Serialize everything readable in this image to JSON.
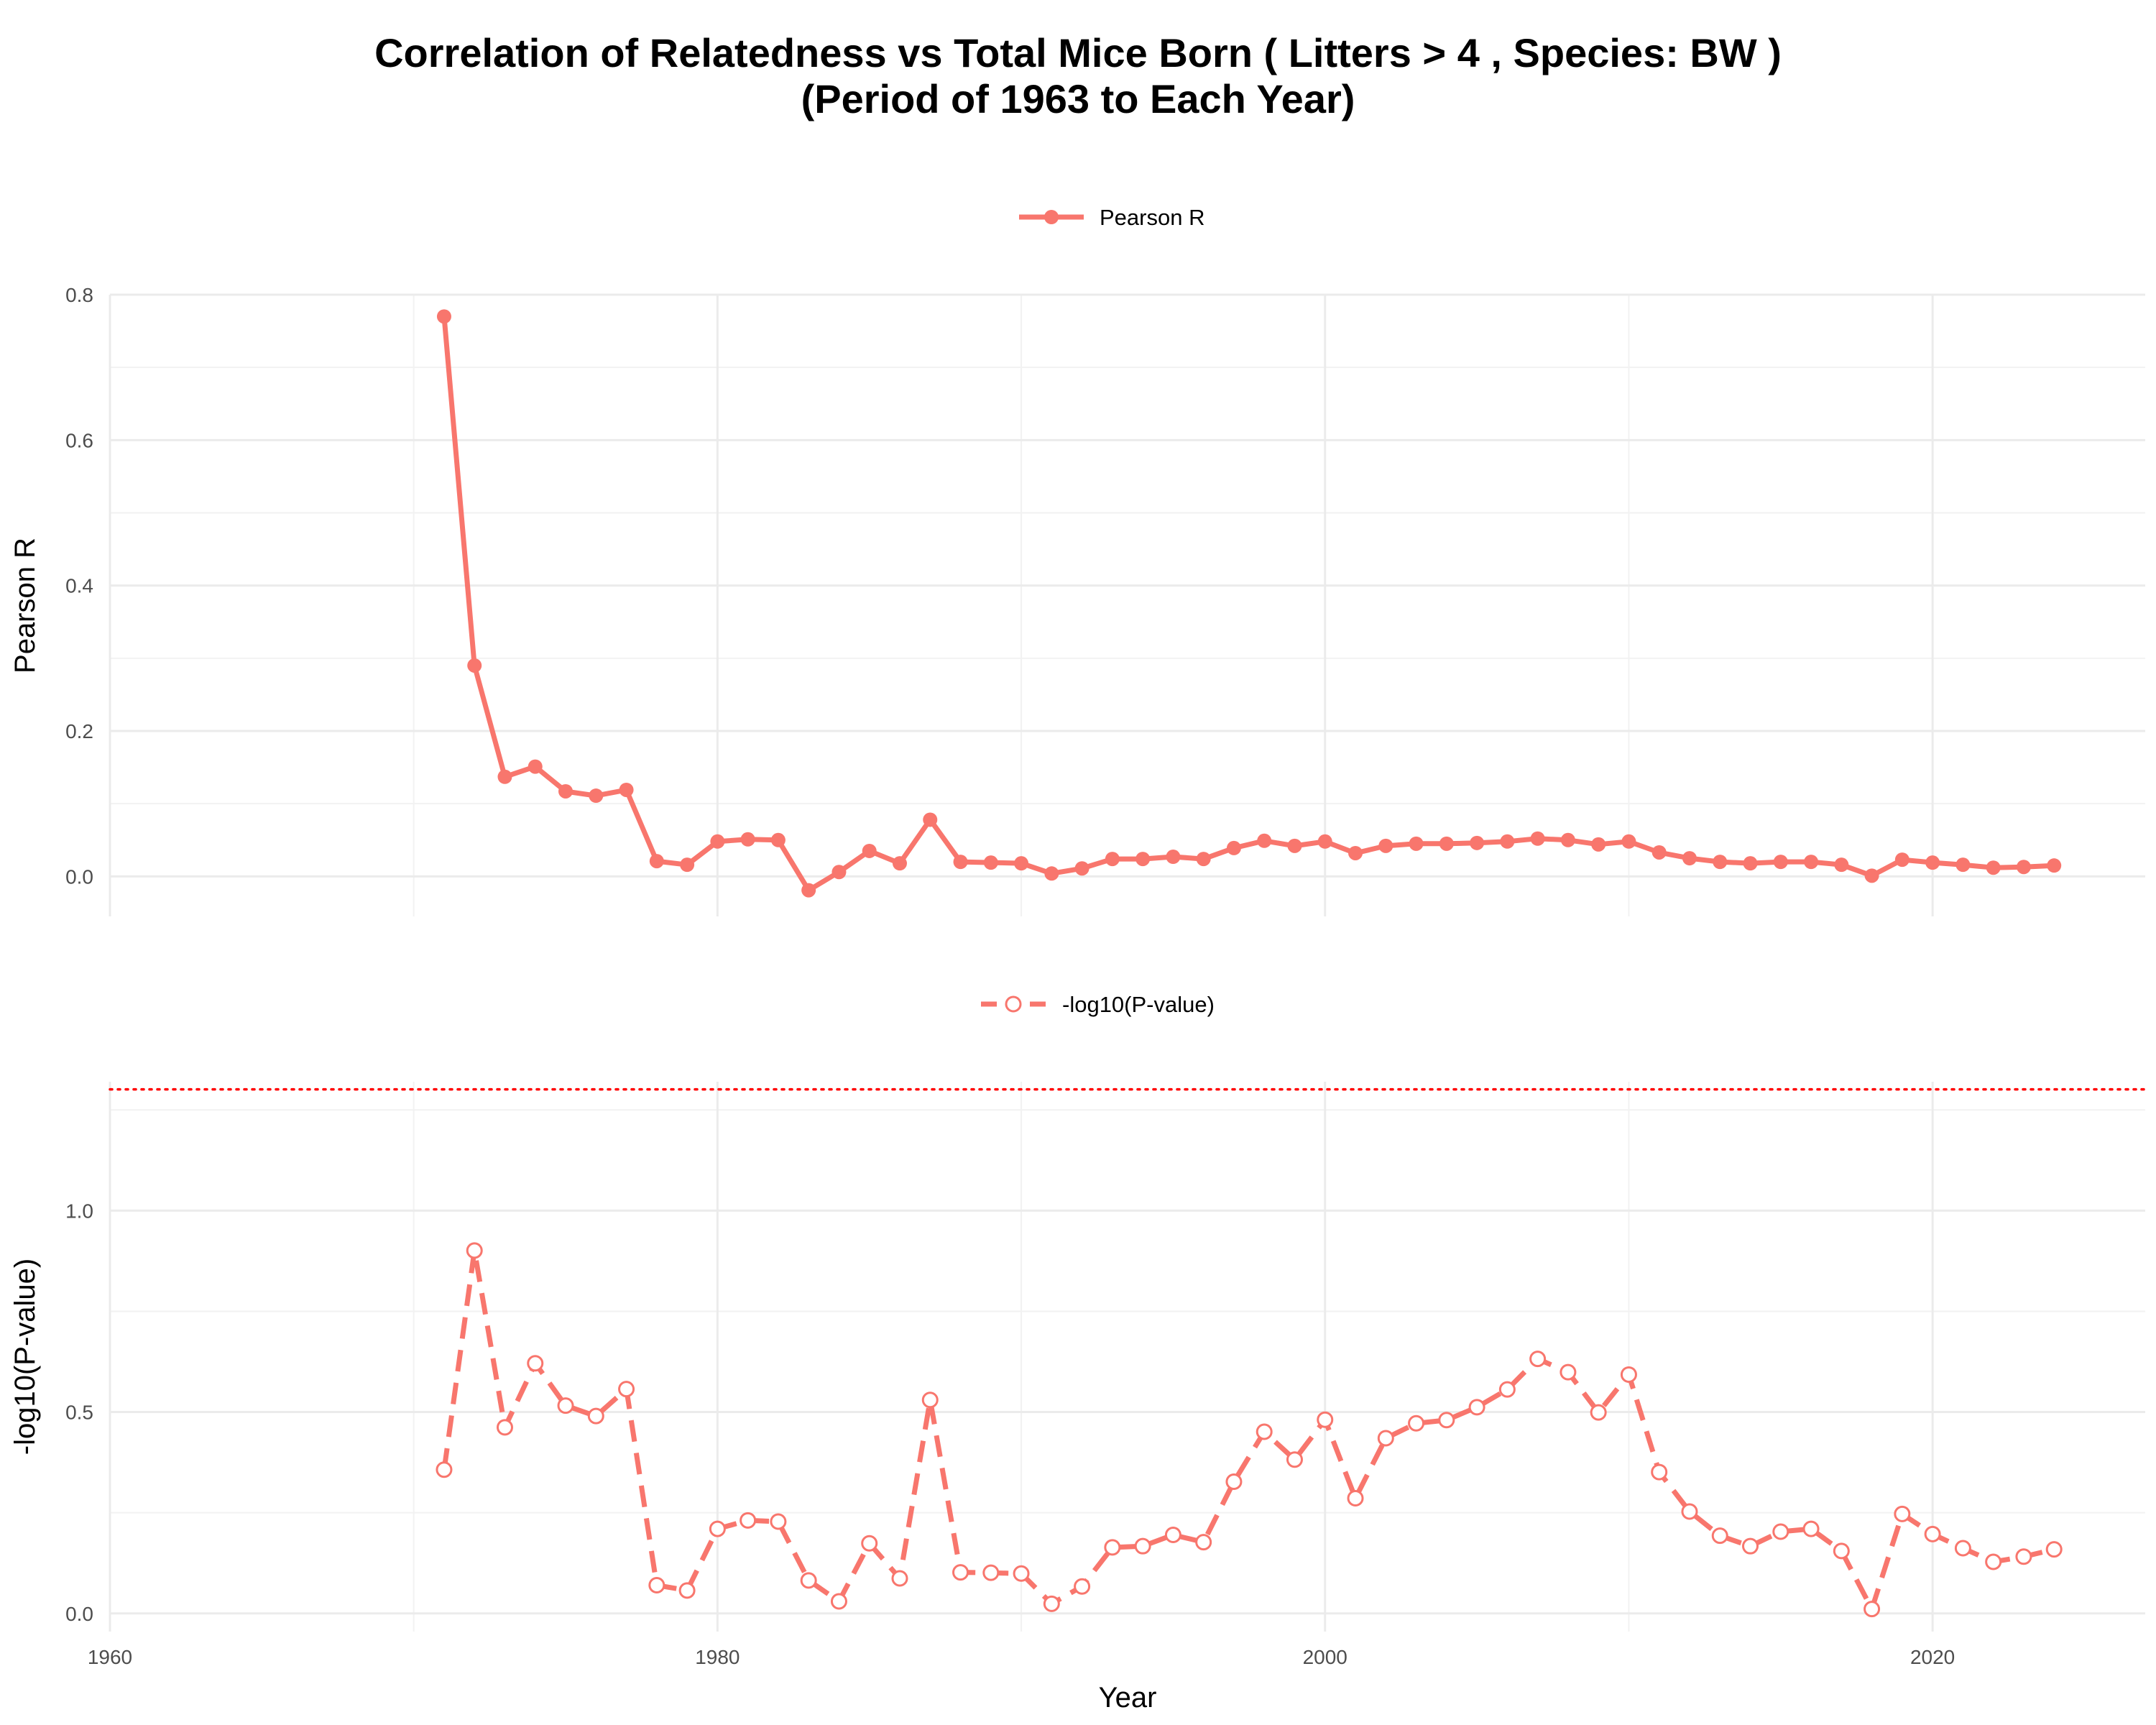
{
  "title": {
    "line1": "Correlation of Relatedness vs Total Mice Born ( Litters > 4 , Species: BW )",
    "line2": "(Period of 1963 to Each Year)"
  },
  "colors": {
    "series": "#f8766d",
    "threshold": "#ff0000",
    "grid_major": "#ebebeb",
    "grid_minor": "#f2f2f2"
  },
  "chart_data": [
    {
      "type": "line",
      "name": "pearson-panel",
      "legend": "Pearson R",
      "ylabel": "Pearson R",
      "xlabel": "",
      "xlim": [
        1960,
        2027
      ],
      "ylim": [
        -0.055,
        0.8
      ],
      "yticks": [
        0.0,
        0.2,
        0.4,
        0.6,
        0.8
      ],
      "ytick_labels": [
        "0.0",
        "0.2",
        "0.4",
        "0.6",
        "0.8"
      ],
      "x": [
        1971,
        1972,
        1973,
        1974,
        1975,
        1976,
        1977,
        1978,
        1979,
        1980,
        1981,
        1982,
        1983,
        1984,
        1985,
        1986,
        1987,
        1988,
        1989,
        1990,
        1991,
        1992,
        1993,
        1994,
        1995,
        1996,
        1997,
        1998,
        1999,
        2000,
        2001,
        2002,
        2003,
        2004,
        2005,
        2006,
        2007,
        2008,
        2009,
        2010,
        2011,
        2012,
        2013,
        2014,
        2015,
        2016,
        2017,
        2018,
        2019,
        2020,
        2021,
        2022,
        2023,
        2024
      ],
      "values": [
        0.77,
        0.29,
        0.137,
        0.151,
        0.117,
        0.111,
        0.119,
        0.021,
        0.016,
        0.048,
        0.051,
        0.05,
        -0.019,
        0.006,
        0.035,
        0.018,
        0.078,
        0.02,
        0.019,
        0.018,
        0.004,
        0.011,
        0.024,
        0.024,
        0.027,
        0.024,
        0.039,
        0.049,
        0.042,
        0.048,
        0.032,
        0.042,
        0.045,
        0.045,
        0.046,
        0.048,
        0.052,
        0.05,
        0.044,
        0.048,
        0.033,
        0.025,
        0.02,
        0.018,
        0.02,
        0.02,
        0.016,
        0.001,
        0.023,
        0.019,
        0.016,
        0.012,
        0.013,
        0.015
      ],
      "marker": "filled-circle",
      "linestyle": "solid"
    },
    {
      "type": "line",
      "name": "pvalue-panel",
      "legend": "-log10(P-value)",
      "ylabel": "-log10(P-value)",
      "xlabel": "Year",
      "xlim": [
        1960,
        2027
      ],
      "ylim": [
        -0.045,
        1.32
      ],
      "yticks": [
        0.0,
        0.5,
        1.0
      ],
      "ytick_labels": [
        "0.0",
        "0.5",
        "1.0"
      ],
      "xticks": [
        1960,
        1980,
        2000,
        2020
      ],
      "xtick_labels": [
        "1960",
        "1980",
        "2000",
        "2020"
      ],
      "threshold": 1.301,
      "x": [
        1971,
        1972,
        1973,
        1974,
        1975,
        1976,
        1977,
        1978,
        1979,
        1980,
        1981,
        1982,
        1983,
        1984,
        1985,
        1986,
        1987,
        1988,
        1989,
        1990,
        1991,
        1992,
        1993,
        1994,
        1995,
        1996,
        1997,
        1998,
        1999,
        2000,
        2001,
        2002,
        2003,
        2004,
        2005,
        2006,
        2007,
        2008,
        2009,
        2010,
        2011,
        2012,
        2013,
        2014,
        2015,
        2016,
        2017,
        2018,
        2019,
        2020,
        2021,
        2022,
        2023,
        2024
      ],
      "values": [
        0.357,
        0.901,
        0.462,
        0.621,
        0.516,
        0.49,
        0.557,
        0.07,
        0.057,
        0.21,
        0.231,
        0.228,
        0.082,
        0.03,
        0.174,
        0.087,
        0.53,
        0.102,
        0.101,
        0.099,
        0.024,
        0.067,
        0.164,
        0.167,
        0.195,
        0.177,
        0.327,
        0.451,
        0.382,
        0.481,
        0.286,
        0.435,
        0.472,
        0.48,
        0.512,
        0.556,
        0.632,
        0.599,
        0.499,
        0.593,
        0.351,
        0.253,
        0.193,
        0.167,
        0.203,
        0.21,
        0.155,
        0.011,
        0.247,
        0.197,
        0.162,
        0.128,
        0.141,
        0.159
      ],
      "marker": "open-circle",
      "linestyle": "dashed"
    }
  ]
}
